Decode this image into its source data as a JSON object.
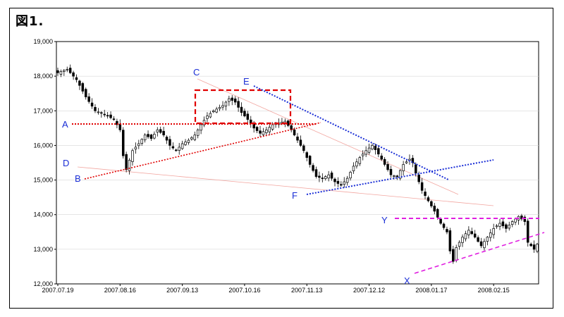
{
  "figure_label": "図1.",
  "colors": {
    "candle": "#000000",
    "red_guides": "#e00000",
    "blue_guides": "#1a2ed6",
    "magenta_guides": "#e020e0",
    "faint_guides": "#f2a6a0"
  },
  "chart_data": {
    "type": "candlestick",
    "ylim": [
      12000,
      19000
    ],
    "yticks": [
      "19,000",
      "18,000",
      "17,000",
      "16,000",
      "15,000",
      "14,000",
      "13,000",
      "12,000"
    ],
    "ytick_values": [
      19000,
      18000,
      17000,
      16000,
      15000,
      14000,
      13000,
      12000
    ],
    "xticks": [
      "2007.07.19",
      "2007.08.16",
      "2007.09.13",
      "2007.10.16",
      "2007.11.13",
      "2007.12.12",
      "2008.01.17",
      "2008.02.15"
    ],
    "xtick_index": [
      0,
      20,
      40,
      60,
      80,
      100,
      120,
      140
    ],
    "n_sessions": 155,
    "anchors": [
      [
        0,
        18100
      ],
      [
        3,
        18200
      ],
      [
        6,
        17900
      ],
      [
        9,
        17400
      ],
      [
        12,
        17000
      ],
      [
        15,
        16900
      ],
      [
        18,
        16750
      ],
      [
        20,
        16450
      ],
      [
        21,
        15700
      ],
      [
        22,
        15300
      ],
      [
        24,
        15850
      ],
      [
        26,
        16050
      ],
      [
        28,
        16300
      ],
      [
        30,
        16200
      ],
      [
        32,
        16450
      ],
      [
        34,
        16300
      ],
      [
        36,
        16000
      ],
      [
        38,
        15850
      ],
      [
        40,
        16050
      ],
      [
        42,
        16150
      ],
      [
        44,
        16300
      ],
      [
        46,
        16600
      ],
      [
        48,
        16850
      ],
      [
        50,
        17000
      ],
      [
        53,
        17150
      ],
      [
        55,
        17350
      ],
      [
        57,
        17250
      ],
      [
        59,
        16950
      ],
      [
        61,
        16750
      ],
      [
        63,
        16500
      ],
      [
        65,
        16350
      ],
      [
        67,
        16450
      ],
      [
        69,
        16600
      ],
      [
        71,
        16650
      ],
      [
        73,
        16700
      ],
      [
        75,
        16450
      ],
      [
        77,
        16150
      ],
      [
        79,
        15850
      ],
      [
        81,
        15450
      ],
      [
        83,
        15100
      ],
      [
        85,
        15050
      ],
      [
        87,
        15150
      ],
      [
        89,
        14950
      ],
      [
        91,
        14850
      ],
      [
        93,
        15050
      ],
      [
        95,
        15400
      ],
      [
        97,
        15650
      ],
      [
        99,
        15850
      ],
      [
        101,
        16000
      ],
      [
        103,
        15750
      ],
      [
        105,
        15450
      ],
      [
        107,
        15150
      ],
      [
        109,
        15100
      ],
      [
        111,
        15450
      ],
      [
        113,
        15600
      ],
      [
        114,
        15500
      ],
      [
        115,
        15200
      ],
      [
        117,
        14700
      ],
      [
        119,
        14400
      ],
      [
        121,
        14100
      ],
      [
        123,
        13750
      ],
      [
        125,
        13500
      ],
      [
        126,
        12950
      ],
      [
        127,
        12650
      ],
      [
        128,
        13050
      ],
      [
        130,
        13350
      ],
      [
        132,
        13550
      ],
      [
        134,
        13350
      ],
      [
        136,
        13100
      ],
      [
        138,
        13350
      ],
      [
        140,
        13600
      ],
      [
        142,
        13750
      ],
      [
        144,
        13600
      ],
      [
        146,
        13800
      ],
      [
        148,
        13950
      ],
      [
        150,
        13800
      ],
      [
        151,
        13200
      ],
      [
        153,
        13000
      ],
      [
        154,
        13150
      ]
    ],
    "annotations": [
      {
        "text": "A",
        "color": "blue"
      },
      {
        "text": "B",
        "color": "blue"
      },
      {
        "text": "C",
        "color": "blue"
      },
      {
        "text": "D",
        "color": "blue"
      },
      {
        "text": "E",
        "color": "blue"
      },
      {
        "text": "F",
        "color": "blue"
      },
      {
        "text": "Y",
        "color": "blue"
      },
      {
        "text": "X",
        "color": "blue"
      }
    ]
  }
}
